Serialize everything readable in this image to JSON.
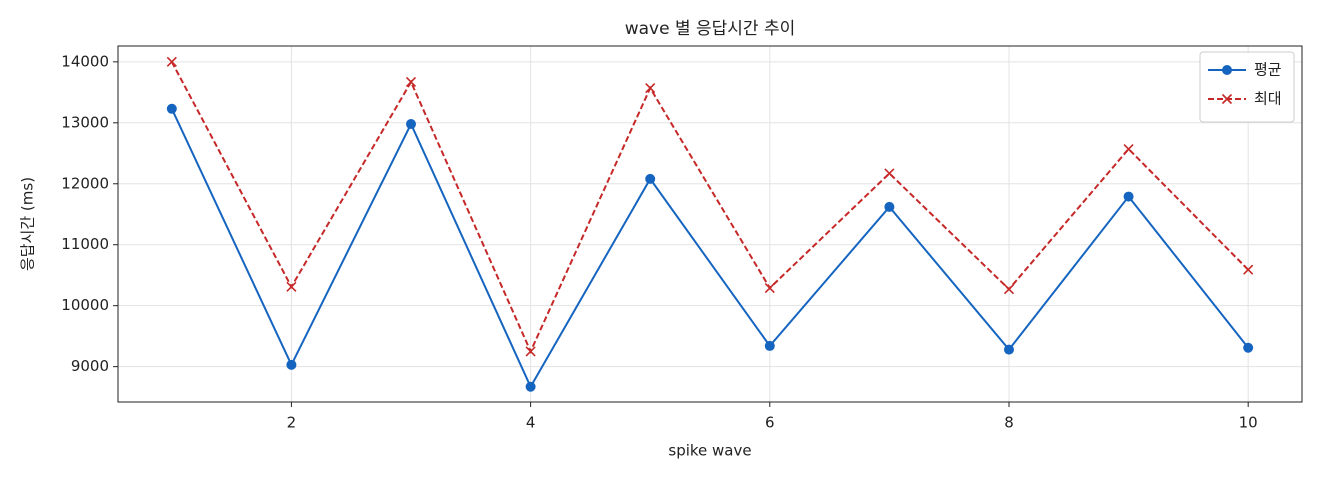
{
  "chart_data": {
    "type": "line",
    "title": "wave 별 응답시간 추이",
    "x_label": "spike wave",
    "y_label": "응답시간 (ms)",
    "x": [
      1,
      2,
      3,
      4,
      5,
      6,
      7,
      8,
      9,
      10
    ],
    "series": [
      {
        "name": "평균",
        "color": "#1565c0",
        "marker": "o",
        "dash": false,
        "values": [
          13230,
          9030,
          12980,
          8670,
          12080,
          9340,
          11620,
          9280,
          11790,
          9310
        ]
      },
      {
        "name": "최대",
        "color": "#c62828",
        "marker": "x",
        "dash": true,
        "values": [
          14000,
          10310,
          13670,
          9250,
          13570,
          10290,
          12170,
          10270,
          12570,
          10590
        ]
      }
    ],
    "xlim": [
      0.55,
      10.45
    ],
    "ylim": [
      8420,
      14260
    ],
    "xticks": [
      2,
      4,
      6,
      8,
      10
    ],
    "yticks": [
      9000,
      10000,
      11000,
      12000,
      13000,
      14000
    ],
    "grid": true,
    "legend": "upper right"
  }
}
